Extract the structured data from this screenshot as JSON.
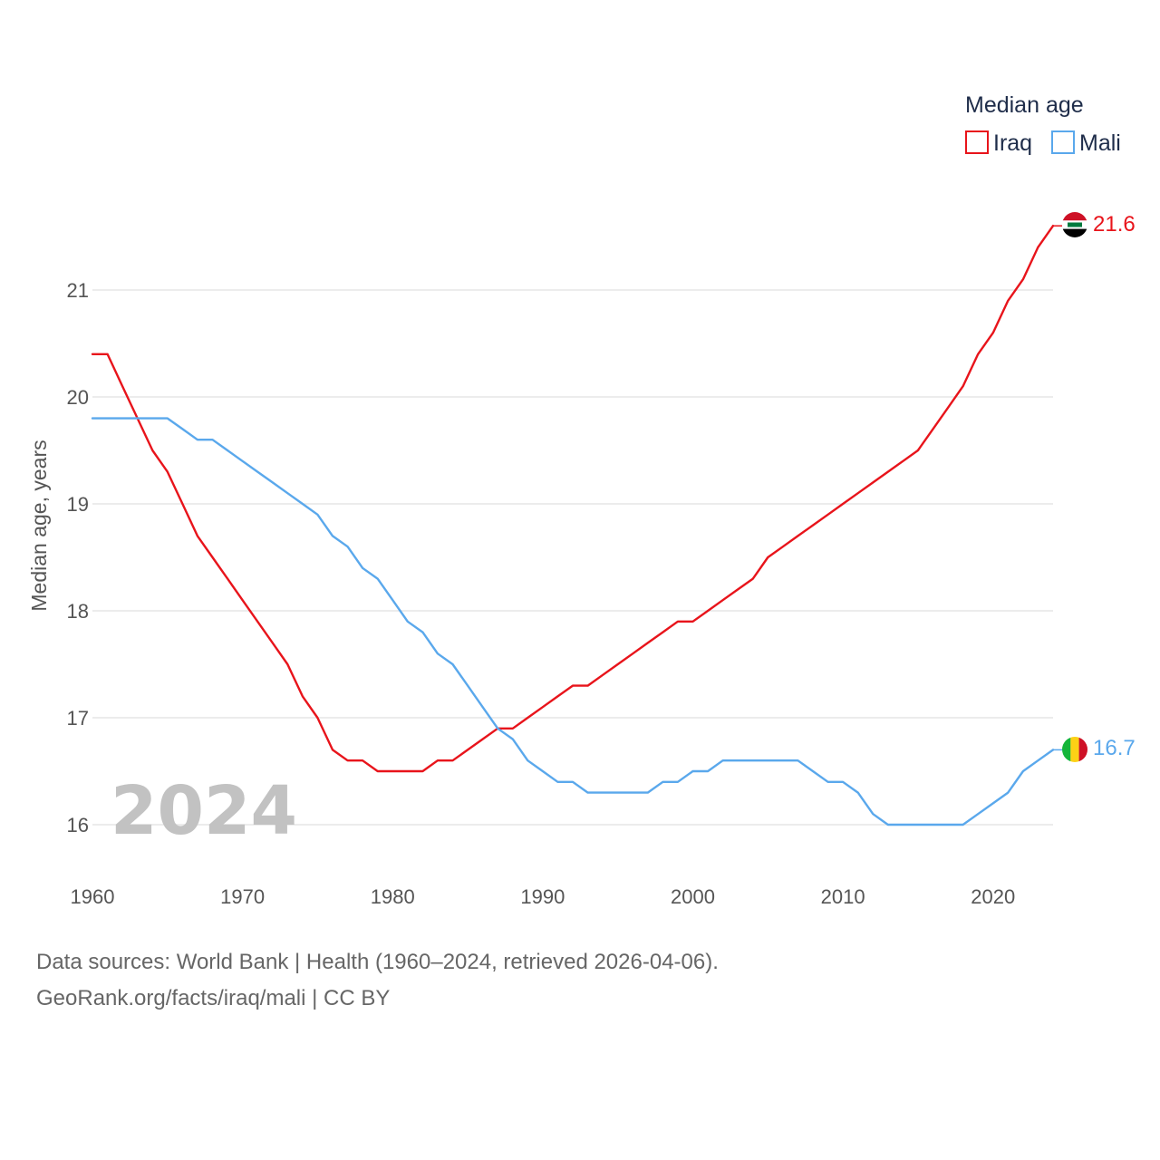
{
  "colors": {
    "iraq": "#e8141b",
    "mali": "#5aa8ec",
    "grid": "#e5e5e5"
  },
  "watermark_year": "2024",
  "legend": {
    "title": "Median age"
  },
  "sources": {
    "line1": "Data sources: World Bank | Health (1960–2024, retrieved 2026-04-06).",
    "line2": "GeoRank.org/facts/iraq/mali | CC BY"
  },
  "chart_data": {
    "type": "line",
    "title": "",
    "xlabel": "",
    "ylabel": "Median age, years",
    "xlim": [
      1960,
      2024
    ],
    "ylim": [
      15.6,
      22.0
    ],
    "yticks": [
      16,
      17,
      18,
      19,
      20,
      21
    ],
    "xticks": [
      1960,
      1970,
      1980,
      1990,
      2000,
      2010,
      2020
    ],
    "grid": true,
    "legend_position": "top-right",
    "x": [
      1960,
      1961,
      1962,
      1963,
      1964,
      1965,
      1966,
      1967,
      1968,
      1969,
      1970,
      1971,
      1972,
      1973,
      1974,
      1975,
      1976,
      1977,
      1978,
      1979,
      1980,
      1981,
      1982,
      1983,
      1984,
      1985,
      1986,
      1987,
      1988,
      1989,
      1990,
      1991,
      1992,
      1993,
      1994,
      1995,
      1996,
      1997,
      1998,
      1999,
      2000,
      2001,
      2002,
      2003,
      2004,
      2005,
      2006,
      2007,
      2008,
      2009,
      2010,
      2011,
      2012,
      2013,
      2014,
      2015,
      2016,
      2017,
      2018,
      2019,
      2020,
      2021,
      2022,
      2023,
      2024
    ],
    "series": [
      {
        "name": "Iraq",
        "color": "#e8141b",
        "end_label": "21.6",
        "values": [
          20.4,
          20.4,
          20.1,
          19.8,
          19.5,
          19.3,
          19.0,
          18.7,
          18.5,
          18.3,
          18.1,
          17.9,
          17.7,
          17.5,
          17.2,
          17.0,
          16.7,
          16.6,
          16.6,
          16.5,
          16.5,
          16.5,
          16.5,
          16.6,
          16.6,
          16.7,
          16.8,
          16.9,
          16.9,
          17.0,
          17.1,
          17.2,
          17.3,
          17.3,
          17.4,
          17.5,
          17.6,
          17.7,
          17.8,
          17.9,
          17.9,
          18.0,
          18.1,
          18.2,
          18.3,
          18.5,
          18.6,
          18.7,
          18.8,
          18.9,
          19.0,
          19.1,
          19.2,
          19.3,
          19.4,
          19.5,
          19.7,
          19.9,
          20.1,
          20.4,
          20.6,
          20.9,
          21.1,
          21.4,
          21.6
        ]
      },
      {
        "name": "Mali",
        "color": "#5aa8ec",
        "end_label": "16.7",
        "values": [
          19.8,
          19.8,
          19.8,
          19.8,
          19.8,
          19.8,
          19.7,
          19.6,
          19.6,
          19.5,
          19.4,
          19.3,
          19.2,
          19.1,
          19.0,
          18.9,
          18.7,
          18.6,
          18.4,
          18.3,
          18.1,
          17.9,
          17.8,
          17.6,
          17.5,
          17.3,
          17.1,
          16.9,
          16.8,
          16.6,
          16.5,
          16.4,
          16.4,
          16.3,
          16.3,
          16.3,
          16.3,
          16.3,
          16.4,
          16.4,
          16.5,
          16.5,
          16.6,
          16.6,
          16.6,
          16.6,
          16.6,
          16.6,
          16.5,
          16.4,
          16.4,
          16.3,
          16.1,
          16.0,
          16.0,
          16.0,
          16.0,
          16.0,
          16.0,
          16.1,
          16.2,
          16.3,
          16.5,
          16.6,
          16.7
        ]
      }
    ]
  }
}
